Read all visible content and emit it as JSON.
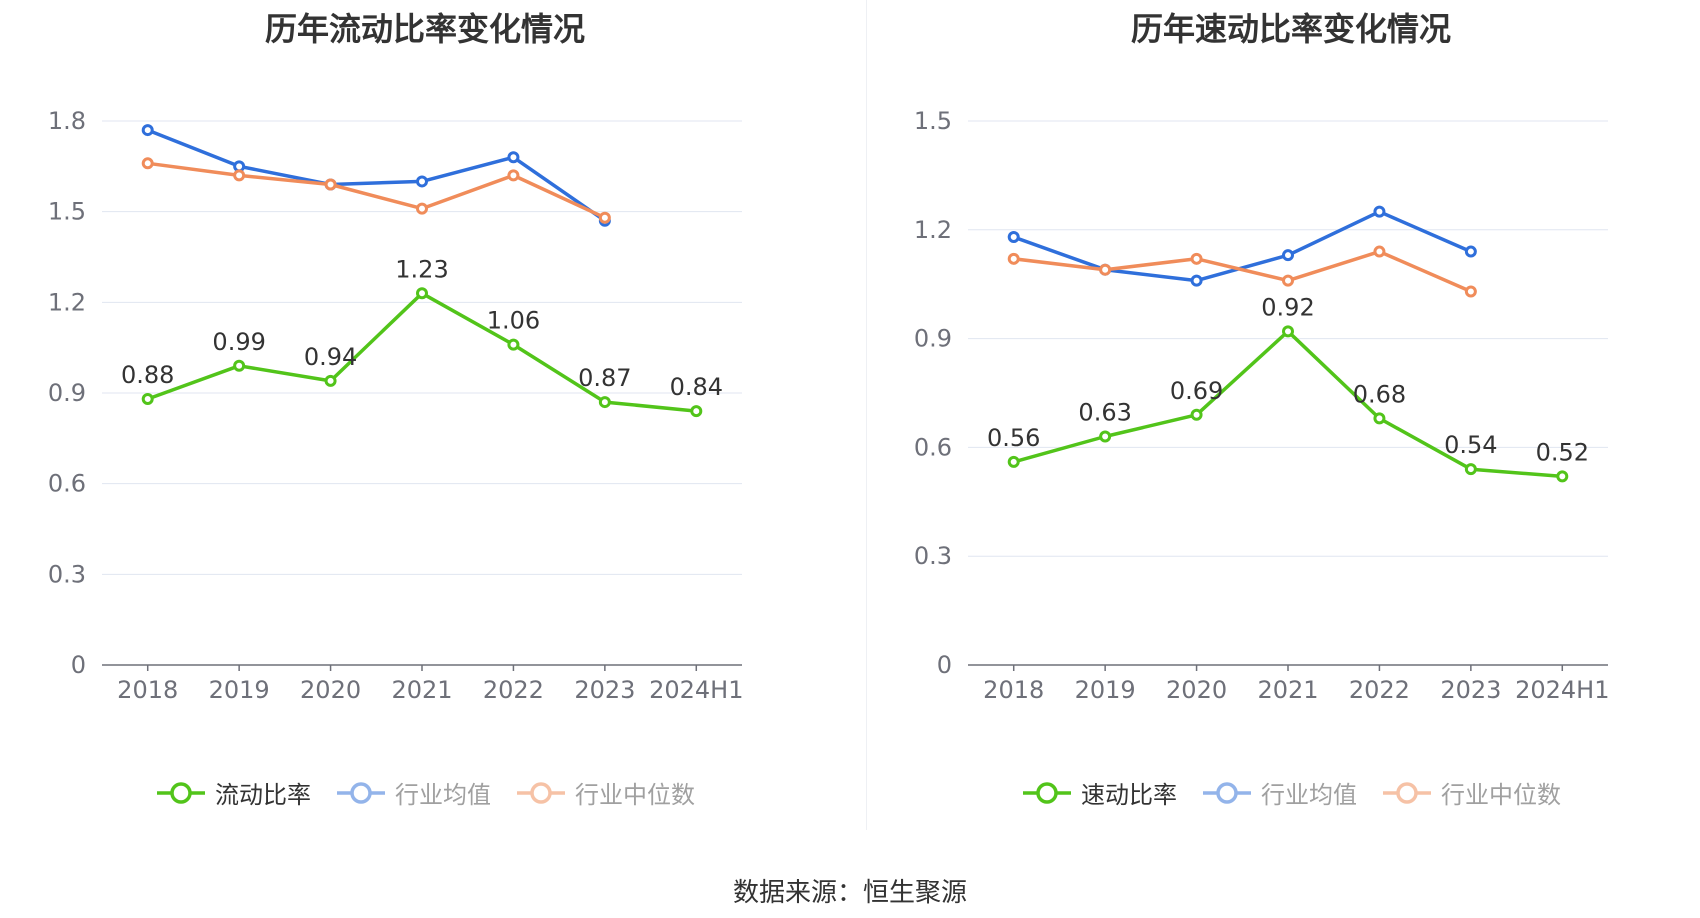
{
  "source_text": "数据来源：恒生聚源",
  "chart_data": [
    {
      "type": "line",
      "title": "历年流动比率变化情况",
      "categories": [
        "2018",
        "2019",
        "2020",
        "2021",
        "2022",
        "2023",
        "2024H1"
      ],
      "ylim": [
        0,
        1.8
      ],
      "yticks": [
        0,
        0.3,
        0.6,
        0.9,
        1.2,
        1.5,
        1.8
      ],
      "ytick_labels": [
        "0",
        "0.3",
        "0.6",
        "0.9",
        "1.2",
        "1.5",
        "1.8"
      ],
      "grid": true,
      "legend_position": "bottom",
      "series": [
        {
          "name": "流动比率",
          "color": "#52c41a",
          "values": [
            0.88,
            0.99,
            0.94,
            1.23,
            1.06,
            0.87,
            0.84
          ],
          "labels": [
            "0.88",
            "0.99",
            "0.94",
            "1.23",
            "1.06",
            "0.87",
            "0.84"
          ],
          "show_labels": true,
          "legend_active": true
        },
        {
          "name": "行业均值",
          "color": "#2f6fdb",
          "legend_color": "#93b4ea",
          "values": [
            1.77,
            1.65,
            1.59,
            1.6,
            1.68,
            1.47,
            null
          ],
          "legend_active": false
        },
        {
          "name": "行业中位数",
          "color": "#f08c5a",
          "legend_color": "#f6c2a6",
          "values": [
            1.66,
            1.62,
            1.59,
            1.51,
            1.62,
            1.48,
            null
          ],
          "legend_active": false
        }
      ]
    },
    {
      "type": "line",
      "title": "历年速动比率变化情况",
      "categories": [
        "2018",
        "2019",
        "2020",
        "2021",
        "2022",
        "2023",
        "2024H1"
      ],
      "ylim": [
        0,
        1.5
      ],
      "yticks": [
        0,
        0.3,
        0.6,
        0.9,
        1.2,
        1.5
      ],
      "ytick_labels": [
        "0",
        "0.3",
        "0.6",
        "0.9",
        "1.2",
        "1.5"
      ],
      "grid": true,
      "legend_position": "bottom",
      "series": [
        {
          "name": "速动比率",
          "color": "#52c41a",
          "values": [
            0.56,
            0.63,
            0.69,
            0.92,
            0.68,
            0.54,
            0.52
          ],
          "labels": [
            "0.56",
            "0.63",
            "0.69",
            "0.92",
            "0.68",
            "0.54",
            "0.52"
          ],
          "show_labels": true,
          "legend_active": true
        },
        {
          "name": "行业均值",
          "color": "#2f6fdb",
          "legend_color": "#93b4ea",
          "values": [
            1.18,
            1.09,
            1.06,
            1.13,
            1.25,
            1.14,
            null
          ],
          "legend_active": false
        },
        {
          "name": "行业中位数",
          "color": "#f08c5a",
          "legend_color": "#f6c2a6",
          "values": [
            1.12,
            1.09,
            1.12,
            1.06,
            1.14,
            1.03,
            null
          ],
          "legend_active": false
        }
      ]
    }
  ]
}
